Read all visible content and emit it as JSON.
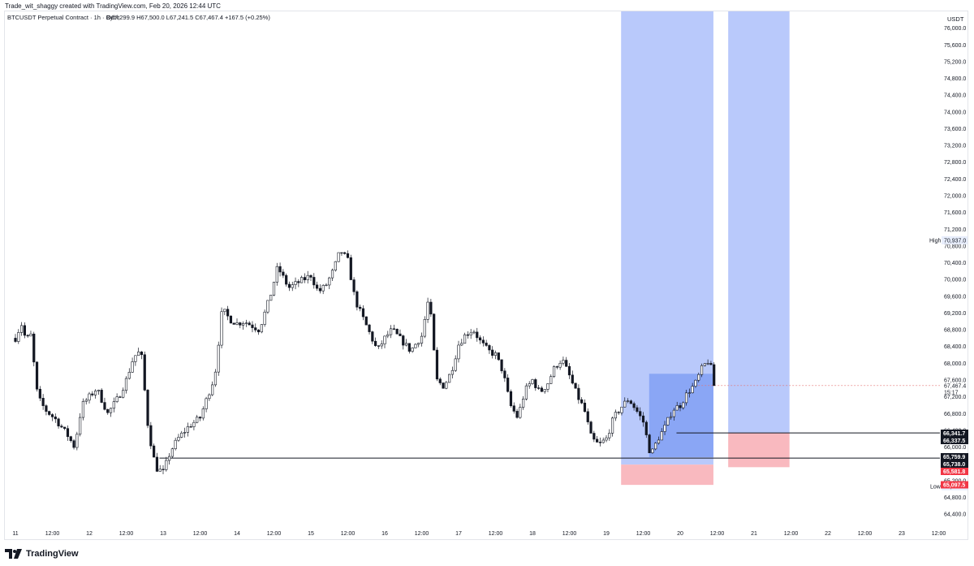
{
  "header": {
    "credit": "Trade_wit_shaggy created with TradingView.com, Feb 20, 2026 12:44 UTC"
  },
  "footer": {
    "brand": "TradingView"
  },
  "chart_data": {
    "type": "candlestick",
    "title": "BTCUSDT Perpetual Contract · 1h · Bybit",
    "ohlc_label": "O67,299.9 H67,500.0 L67,241.5 C67,467.4 +167.5 (+0.25%)",
    "currency": "USDT",
    "ylim": [
      64150,
      76400
    ],
    "y_ticks": [
      "76,000.0",
      "75,600.0",
      "75,200.0",
      "74,800.0",
      "74,400.0",
      "74,000.0",
      "73,600.0",
      "73,200.0",
      "72,800.0",
      "72,400.0",
      "72,000.0",
      "71,600.0",
      "71,200.0",
      "70,800.0",
      "70,400.0",
      "70,000.0",
      "69,600.0",
      "69,200.0",
      "68,800.0",
      "68,400.0",
      "68,000.0",
      "67,600.0",
      "67,200.0",
      "66,800.0",
      "66,400.0",
      "66,000.0",
      "65,600.0",
      "65,200.0",
      "64,800.0",
      "64,400.0"
    ],
    "x_ticks": [
      "11",
      "12:00",
      "12",
      "12:00",
      "13",
      "12:00",
      "14",
      "12:00",
      "15",
      "12:00",
      "16",
      "12:00",
      "17",
      "12:00",
      "18",
      "12:00",
      "19",
      "12:00",
      "20",
      "12:00",
      "21",
      "12:00",
      "22",
      "12:00",
      "23",
      "12:00"
    ],
    "x_range_days": [
      0,
      12.75
    ],
    "high_label": "High",
    "high_value": "70,937.0",
    "low_label": "Low",
    "low_value": "65,065.0",
    "price_label": "67,467.4",
    "countdown": "15:17",
    "price_tags": [
      {
        "text": "66,341.7",
        "price": 66341.7,
        "style": "dark"
      },
      {
        "text": "66,337.5",
        "price": 66337.5,
        "style": "dark"
      },
      {
        "text": "65,759.9",
        "price": 65759.9,
        "style": "dark"
      },
      {
        "text": "65,738.0",
        "price": 65738.0,
        "style": "dark"
      },
      {
        "text": "65,581.8",
        "price": 65581.8,
        "style": "red"
      },
      {
        "text": "65,097.5",
        "price": 65097.5,
        "style": "red"
      }
    ],
    "horizontal_lines": [
      {
        "price": 66337.5,
        "from_day": 8.95
      },
      {
        "price": 65738.0,
        "from_day": 1.95
      }
    ],
    "zones": [
      {
        "from_day": 8.2,
        "to_day": 9.45,
        "top": 76400,
        "bottom": 65581.8,
        "color": "#b9c9fb"
      },
      {
        "from_day": 8.2,
        "to_day": 9.45,
        "top": 65581.8,
        "bottom": 65097.5,
        "color": "#f9b9bf"
      },
      {
        "from_day": 8.58,
        "to_day": 9.45,
        "top": 67750,
        "bottom": 65760,
        "color": "#8aa6f5"
      },
      {
        "from_day": 9.65,
        "to_day": 10.48,
        "top": 76400,
        "bottom": 66341.7,
        "color": "#b9c9fb"
      },
      {
        "from_day": 9.65,
        "to_day": 10.48,
        "top": 66341.7,
        "bottom": 65520,
        "color": "#f9b9bf"
      }
    ],
    "close_path": [
      [
        0,
        68600
      ],
      [
        0.08,
        68950
      ],
      [
        0.15,
        68500
      ],
      [
        0.2,
        68800
      ],
      [
        0.3,
        67200
      ],
      [
        0.4,
        66900
      ],
      [
        0.55,
        66650
      ],
      [
        0.7,
        66300
      ],
      [
        0.8,
        66000
      ],
      [
        0.9,
        67000
      ],
      [
        1.0,
        67200
      ],
      [
        1.1,
        67400
      ],
      [
        1.25,
        66800
      ],
      [
        1.4,
        67200
      ],
      [
        1.5,
        67600
      ],
      [
        1.6,
        68150
      ],
      [
        1.7,
        68300
      ],
      [
        1.8,
        66400
      ],
      [
        1.9,
        65500
      ],
      [
        2.0,
        65400
      ],
      [
        2.1,
        65900
      ],
      [
        2.2,
        66200
      ],
      [
        2.35,
        66500
      ],
      [
        2.5,
        66700
      ],
      [
        2.6,
        67200
      ],
      [
        2.7,
        67700
      ],
      [
        2.8,
        69300
      ],
      [
        2.9,
        69050
      ],
      [
        3.0,
        68950
      ],
      [
        3.1,
        69000
      ],
      [
        3.2,
        68900
      ],
      [
        3.3,
        68800
      ],
      [
        3.45,
        69600
      ],
      [
        3.55,
        70300
      ],
      [
        3.7,
        69800
      ],
      [
        3.85,
        69950
      ],
      [
        4.0,
        70100
      ],
      [
        4.1,
        69700
      ],
      [
        4.2,
        69850
      ],
      [
        4.3,
        70200
      ],
      [
        4.4,
        70700
      ],
      [
        4.5,
        70450
      ],
      [
        4.6,
        69500
      ],
      [
        4.7,
        69100
      ],
      [
        4.8,
        68700
      ],
      [
        4.9,
        68300
      ],
      [
        5.0,
        68600
      ],
      [
        5.1,
        68800
      ],
      [
        5.25,
        68500
      ],
      [
        5.35,
        68300
      ],
      [
        5.5,
        68650
      ],
      [
        5.6,
        69600
      ],
      [
        5.7,
        67600
      ],
      [
        5.8,
        67450
      ],
      [
        5.9,
        67800
      ],
      [
        6.0,
        68450
      ],
      [
        6.1,
        68700
      ],
      [
        6.2,
        68800
      ],
      [
        6.3,
        68500
      ],
      [
        6.4,
        68300
      ],
      [
        6.5,
        68200
      ],
      [
        6.6,
        67800
      ],
      [
        6.7,
        67000
      ],
      [
        6.8,
        66700
      ],
      [
        6.9,
        67350
      ],
      [
        7.0,
        67600
      ],
      [
        7.1,
        67300
      ],
      [
        7.2,
        67500
      ],
      [
        7.3,
        67900
      ],
      [
        7.4,
        68100
      ],
      [
        7.5,
        67700
      ],
      [
        7.6,
        67250
      ],
      [
        7.7,
        66900
      ],
      [
        7.8,
        66200
      ],
      [
        7.9,
        66050
      ],
      [
        8.0,
        66200
      ],
      [
        8.1,
        66700
      ],
      [
        8.2,
        66950
      ],
      [
        8.3,
        67150
      ],
      [
        8.4,
        66900
      ],
      [
        8.5,
        66600
      ],
      [
        8.6,
        65800
      ],
      [
        8.7,
        66200
      ],
      [
        8.8,
        66500
      ],
      [
        8.9,
        66900
      ],
      [
        9.0,
        67000
      ],
      [
        9.1,
        67300
      ],
      [
        9.2,
        67500
      ],
      [
        9.3,
        67900
      ],
      [
        9.4,
        68100
      ],
      [
        9.45,
        67467
      ]
    ]
  }
}
